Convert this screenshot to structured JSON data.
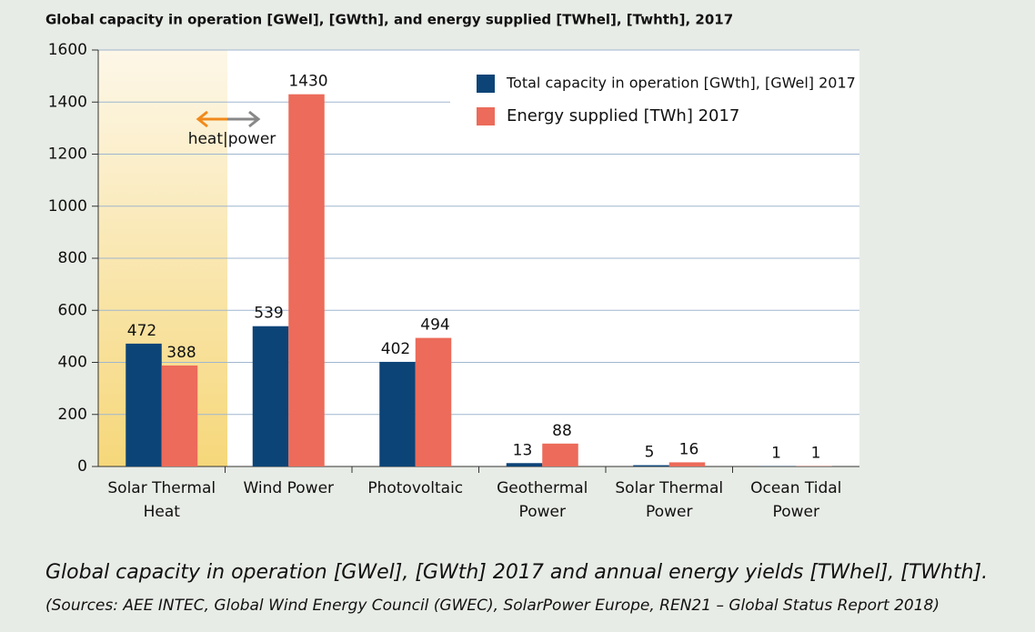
{
  "chart_data": {
    "type": "bar",
    "title": "Global capacity in operation [GWel], [GWth], and energy supplied [TWhel], [Twhth], 2017",
    "categories": [
      "Solar Thermal Heat",
      "Wind Power",
      "Photovoltaic",
      "Geothermal Power",
      "Solar Thermal Power",
      "Ocean Tidal Power"
    ],
    "series": [
      {
        "name": "Total capacity in operation [GWth], [GWel] 2017",
        "color": "#0d4477",
        "values": [
          472,
          539,
          402,
          13,
          5,
          1
        ]
      },
      {
        "name": "Energy supplied [TWh] 2017",
        "color": "#ec6b5a",
        "values": [
          388,
          1430,
          494,
          88,
          16,
          1
        ]
      }
    ],
    "ylim": [
      0,
      1600
    ],
    "yticks": [
      0,
      200,
      400,
      600,
      800,
      1000,
      1200,
      1400,
      1600
    ],
    "grid": true,
    "legend": "top-right",
    "annotation": "heat|power",
    "caption": "Global capacity in operation [GWel], [GWth] 2017 and annual energy yields [TWhel], [TWhth].",
    "source": "(Sources: AEE INTEC, Global Wind Energy Council (GWEC), SolarPower Europe, REN21 – Global Status Report 2018)"
  }
}
